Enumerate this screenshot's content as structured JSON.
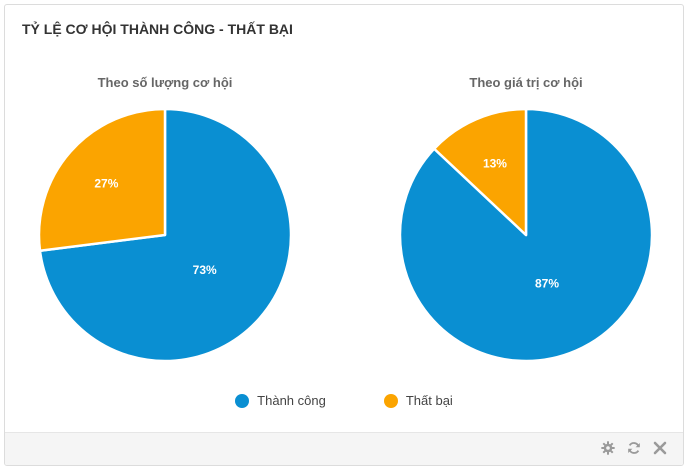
{
  "widget": {
    "title": "TỶ LỆ CƠ HỘI THÀNH CÔNG - THẤT BẠI"
  },
  "colors": {
    "success": "#0a8fd2",
    "fail": "#fba400"
  },
  "footer": {
    "icons": [
      "gear-icon",
      "refresh-icon",
      "close-icon"
    ]
  },
  "chart_data": [
    {
      "type": "pie",
      "title": "Theo số lượng cơ hội",
      "categories": [
        "Thành công",
        "Thất bại"
      ],
      "values": [
        73,
        27
      ],
      "labels": [
        "73%",
        "27%"
      ]
    },
    {
      "type": "pie",
      "title": "Theo giá trị cơ hội",
      "categories": [
        "Thành công",
        "Thất bại"
      ],
      "values": [
        87,
        13
      ],
      "labels": [
        "87%",
        "13%"
      ]
    }
  ],
  "legend": {
    "placement": "bottom",
    "items": [
      {
        "label": "Thành công"
      },
      {
        "label": "Thất bại"
      }
    ]
  }
}
